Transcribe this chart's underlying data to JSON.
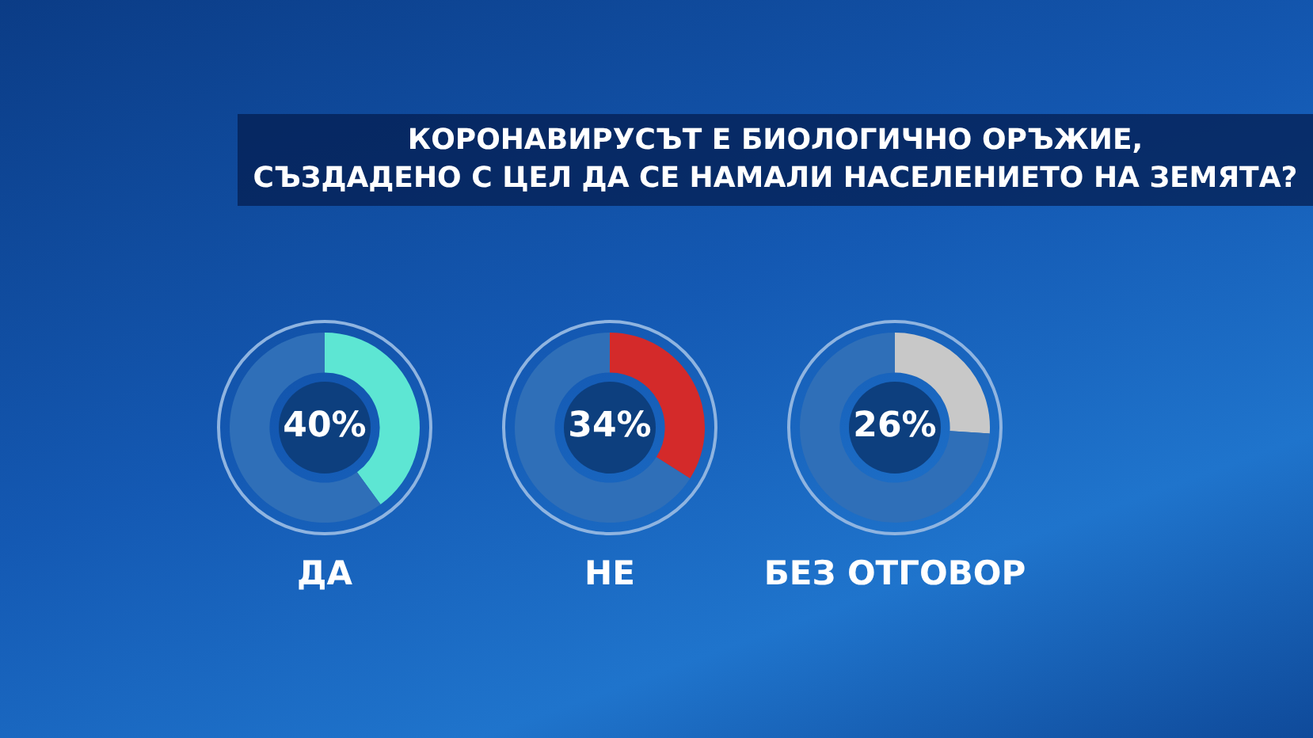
{
  "chart_data": [
    {
      "type": "donut",
      "title": "КОРОНАВИРУСЪТ Е БИОЛОГИЧНО ОРЪЖИЕ,\nСЪЗДАДЕНО С ЦЕЛ ДА СЕ НАМАЛИ НАСЕЛЕНИЕТО НА ЗЕМЯТА?",
      "xlabel": "ДА",
      "categories": [
        null,
        null
      ],
      "values": [
        40,
        60
      ],
      "colors": [
        "#5de6d3",
        "#2f6fb8"
      ],
      "value_labels": [
        "40%",
        null
      ],
      "legend": false
    },
    {
      "type": "donut",
      "xlabel": "НЕ",
      "categories": [
        null,
        null
      ],
      "values": [
        34,
        66
      ],
      "colors": [
        "#d42a2a",
        "#2f6fb8"
      ],
      "value_labels": [
        "34%",
        null
      ],
      "legend": false
    },
    {
      "type": "donut",
      "xlabel": "БЕЗ ОТГОВОР",
      "categories": [
        null,
        null
      ],
      "values": [
        26,
        74
      ],
      "colors": [
        "#c8c8c8",
        "#2f6fb8"
      ],
      "value_labels": [
        "26%",
        null
      ],
      "legend": false
    }
  ]
}
